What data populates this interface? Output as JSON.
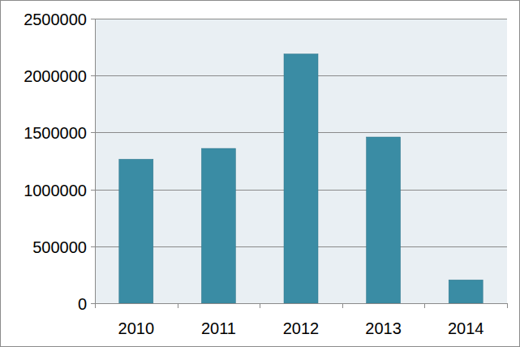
{
  "chart_data": {
    "type": "bar",
    "categories": [
      "2010",
      "2011",
      "2012",
      "2013",
      "2014"
    ],
    "values": [
      1265000,
      1360000,
      2190000,
      1460000,
      205000
    ],
    "color": "#3a8ca4",
    "ylim": [
      0,
      2500000
    ],
    "yticks": [
      0,
      500000,
      1000000,
      1500000,
      2000000,
      2500000
    ],
    "grid": true
  }
}
